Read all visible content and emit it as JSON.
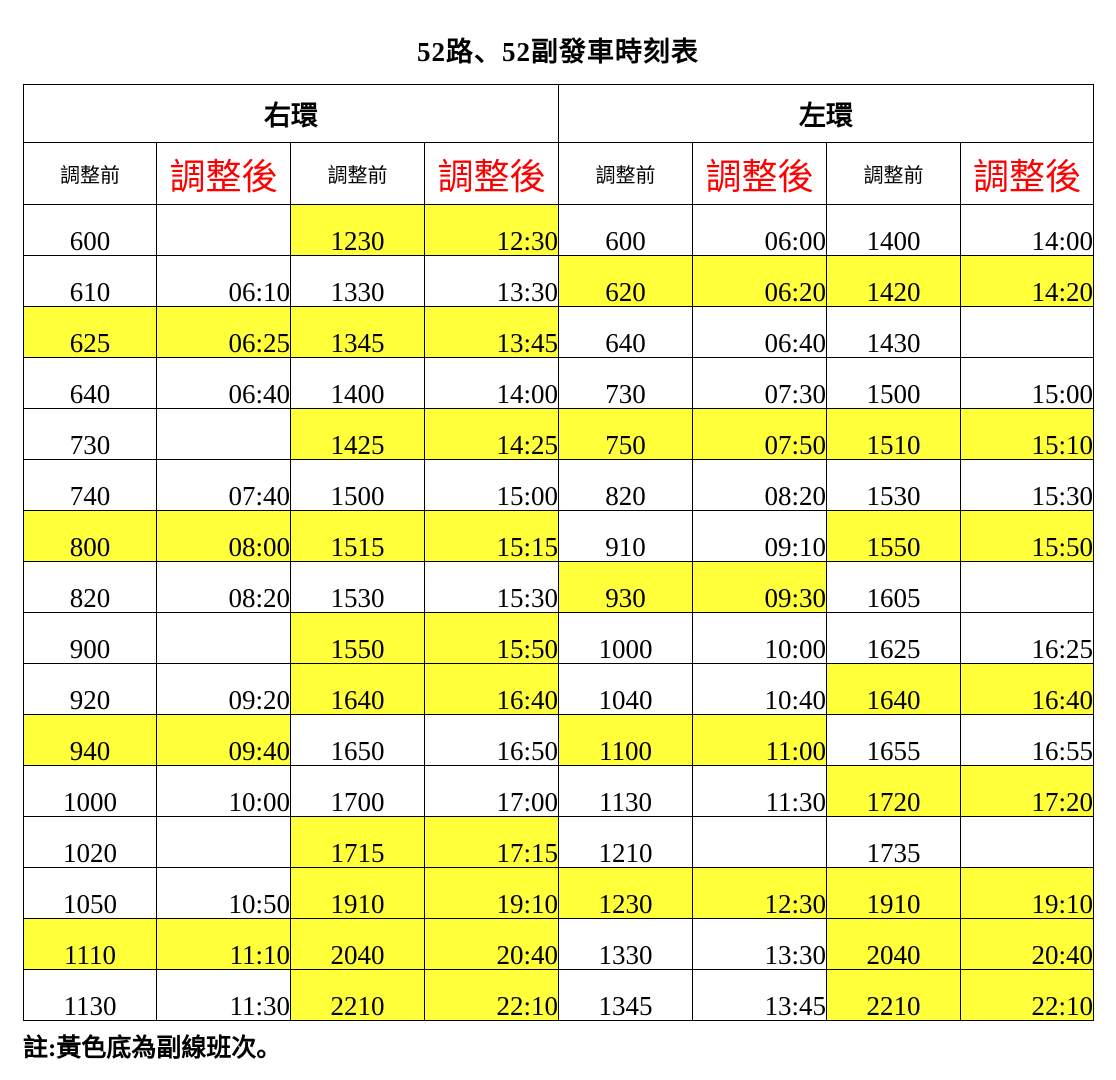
{
  "title": "52路、52副發車時刻表",
  "groups": {
    "right": "右環",
    "left": "左環"
  },
  "headers": {
    "before": "調整前",
    "after": "調整後"
  },
  "colors": {
    "highlight": "#ffff3a",
    "after_header": "#ff0000"
  },
  "legend_highlight_meaning": "yellow background = 副線班次",
  "right_loop": {
    "col1": [
      [
        "600",
        "",
        false
      ],
      [
        "610",
        "06:10",
        false
      ],
      [
        "625",
        "06:25",
        true
      ],
      [
        "640",
        "06:40",
        false
      ],
      [
        "730",
        "",
        false
      ],
      [
        "740",
        "07:40",
        false
      ],
      [
        "800",
        "08:00",
        true
      ],
      [
        "820",
        "08:20",
        false
      ],
      [
        "900",
        "",
        false
      ],
      [
        "920",
        "09:20",
        false
      ],
      [
        "940",
        "09:40",
        true
      ],
      [
        "1000",
        "10:00",
        false
      ],
      [
        "1020",
        "",
        false
      ],
      [
        "1050",
        "10:50",
        false
      ],
      [
        "1110",
        "11:10",
        true
      ],
      [
        "1130",
        "11:30",
        false
      ]
    ],
    "col2": [
      [
        "1230",
        "12:30",
        true
      ],
      [
        "1330",
        "13:30",
        false
      ],
      [
        "1345",
        "13:45",
        true
      ],
      [
        "1400",
        "14:00",
        false
      ],
      [
        "1425",
        "14:25",
        true
      ],
      [
        "1500",
        "15:00",
        false
      ],
      [
        "1515",
        "15:15",
        true
      ],
      [
        "1530",
        "15:30",
        false
      ],
      [
        "1550",
        "15:50",
        true
      ],
      [
        "1640",
        "16:40",
        true
      ],
      [
        "1650",
        "16:50",
        false
      ],
      [
        "1700",
        "17:00",
        false
      ],
      [
        "1715",
        "17:15",
        true
      ],
      [
        "1910",
        "19:10",
        true
      ],
      [
        "2040",
        "20:40",
        true
      ],
      [
        "2210",
        "22:10",
        true
      ]
    ]
  },
  "left_loop": {
    "col1": [
      [
        "600",
        "06:00",
        false
      ],
      [
        "620",
        "06:20",
        true
      ],
      [
        "640",
        "06:40",
        false
      ],
      [
        "730",
        "07:30",
        false
      ],
      [
        "750",
        "07:50",
        true
      ],
      [
        "820",
        "08:20",
        false
      ],
      [
        "910",
        "09:10",
        false
      ],
      [
        "930",
        "09:30",
        true
      ],
      [
        "1000",
        "10:00",
        false
      ],
      [
        "1040",
        "10:40",
        false
      ],
      [
        "1100",
        "11:00",
        true
      ],
      [
        "1130",
        "11:30",
        false
      ],
      [
        "1210",
        "",
        false
      ],
      [
        "1230",
        "12:30",
        true
      ],
      [
        "1330",
        "13:30",
        false
      ],
      [
        "1345",
        "13:45",
        false
      ]
    ],
    "col2": [
      [
        "1400",
        "14:00",
        false
      ],
      [
        "1420",
        "14:20",
        true
      ],
      [
        "1430",
        "",
        false
      ],
      [
        "1500",
        "15:00",
        false
      ],
      [
        "1510",
        "15:10",
        true
      ],
      [
        "1530",
        "15:30",
        false
      ],
      [
        "1550",
        "15:50",
        true
      ],
      [
        "1605",
        "",
        false
      ],
      [
        "1625",
        "16:25",
        false
      ],
      [
        "1640",
        "16:40",
        true
      ],
      [
        "1655",
        "16:55",
        false
      ],
      [
        "1720",
        "17:20",
        true
      ],
      [
        "1735",
        "",
        false
      ],
      [
        "1910",
        "19:10",
        true
      ],
      [
        "2040",
        "20:40",
        true
      ],
      [
        "2210",
        "22:10",
        true
      ]
    ]
  },
  "note": "註:黃色底為副線班次。"
}
